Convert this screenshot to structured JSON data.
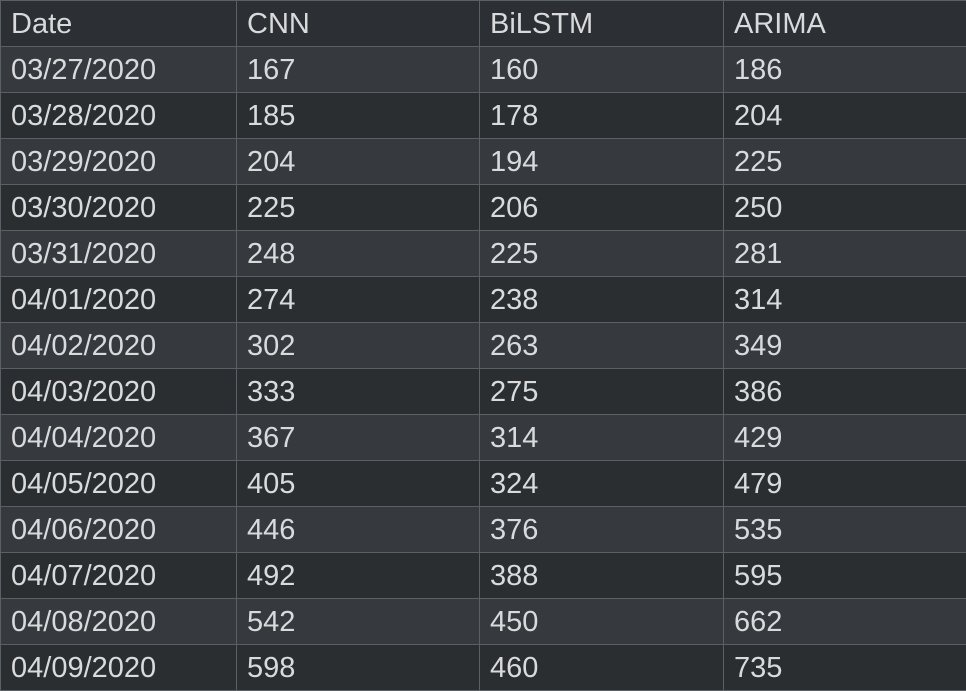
{
  "chart_data": {
    "type": "table",
    "columns": [
      "Date",
      "CNN",
      "BiLSTM",
      "ARIMA"
    ],
    "rows": [
      [
        "03/27/2020",
        "167",
        "160",
        "186"
      ],
      [
        "03/28/2020",
        "185",
        "178",
        "204"
      ],
      [
        "03/29/2020",
        "204",
        "194",
        "225"
      ],
      [
        "03/30/2020",
        "225",
        "206",
        "250"
      ],
      [
        "03/31/2020",
        "248",
        "225",
        "281"
      ],
      [
        "04/01/2020",
        "274",
        "238",
        "314"
      ],
      [
        "04/02/2020",
        "302",
        "263",
        "349"
      ],
      [
        "04/03/2020",
        "333",
        "275",
        "386"
      ],
      [
        "04/04/2020",
        "367",
        "314",
        "429"
      ],
      [
        "04/05/2020",
        "405",
        "324",
        "479"
      ],
      [
        "04/06/2020",
        "446",
        "376",
        "535"
      ],
      [
        "04/07/2020",
        "492",
        "388",
        "595"
      ],
      [
        "04/08/2020",
        "542",
        "450",
        "662"
      ],
      [
        "04/09/2020",
        "598",
        "460",
        "735"
      ]
    ]
  },
  "colors": {
    "background": "#2b2e31",
    "row_stripe": "#363a3e",
    "grid": "#5b6065",
    "text": "#d8dadc"
  }
}
